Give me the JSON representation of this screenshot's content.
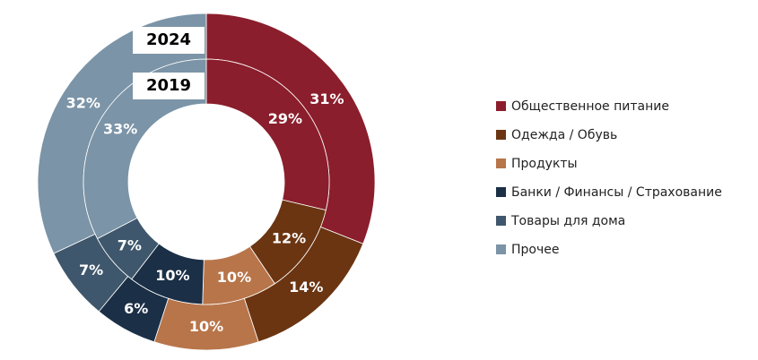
{
  "chart_data": {
    "type": "donut",
    "categories": [
      "Общественное питание",
      "Одежда / Обувь",
      "Продукты",
      "Банки / Финансы / Страхование",
      "Товары для дома",
      "Прочее"
    ],
    "colors": [
      "#8b1e2c",
      "#6b3512",
      "#b8754a",
      "#1b2f46",
      "#3f576c",
      "#7b94a7"
    ],
    "series": [
      {
        "name": "2024",
        "values": [
          31,
          14,
          10,
          6,
          7,
          32
        ],
        "value_labels": [
          "31%",
          "14%",
          "10%",
          "6%",
          "7%",
          "32%"
        ]
      },
      {
        "name": "2019",
        "values": [
          29,
          12,
          10,
          10,
          7,
          33
        ],
        "value_labels": [
          "29%",
          "12%",
          "10%",
          "10%",
          "7%",
          "33%"
        ]
      }
    ]
  }
}
